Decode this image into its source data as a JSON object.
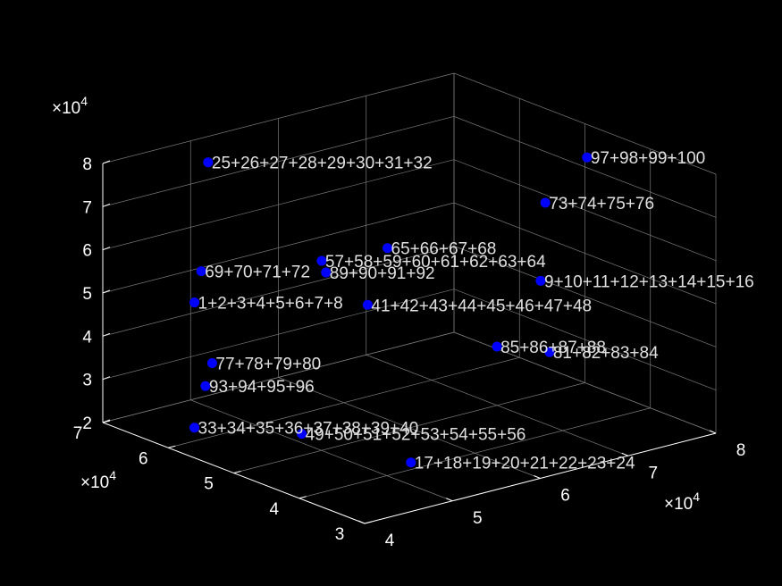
{
  "colors": {
    "background": "#000000",
    "axis_line": "#ffffff",
    "grid_line": "#7a7a7a",
    "tick_text": "#ffffff",
    "marker": "#0000ff",
    "point_label": "#e0e0e0"
  },
  "chart_data": {
    "type": "scatter",
    "dimension": "3d",
    "grid": true,
    "x_axis": {
      "ticks": [
        4,
        5,
        6,
        7,
        8
      ],
      "exponent_label": "×10",
      "exponent_power": "4",
      "lim": [
        40000,
        80000
      ]
    },
    "y_axis": {
      "ticks": [
        3,
        4,
        5,
        6,
        7
      ],
      "exponent_label": "×10",
      "exponent_power": "4",
      "lim": [
        30000,
        70000
      ]
    },
    "z_axis": {
      "ticks": [
        2,
        3,
        4,
        5,
        6,
        7,
        8
      ],
      "exponent_label": "×10",
      "exponent_power": "4",
      "lim": [
        20000,
        80000
      ]
    },
    "points": [
      {
        "label": "1+2+3+4+5+6+7+8",
        "x": 40000,
        "y": 56000,
        "z": 56000
      },
      {
        "label": "9+10+11+12+13+14+15+16",
        "x": 67500,
        "y": 40000,
        "z": 56000
      },
      {
        "label": "17+18+19+20+21+22+23+24",
        "x": 49000,
        "y": 35000,
        "z": 26500
      },
      {
        "label": "25+26+27+28+29+30+31+32",
        "x": 52000,
        "y": 70000,
        "z": 74000
      },
      {
        "label": "33+34+35+36+37+38+39+40",
        "x": 40000,
        "y": 56000,
        "z": 27000
      },
      {
        "label": "41+42+43+44+45+46+47+48",
        "x": 56000,
        "y": 51000,
        "z": 50000
      },
      {
        "label": "49+50+51+52+53+54+55+56",
        "x": 47000,
        "y": 49000,
        "z": 26000
      },
      {
        "label": "57+58+59+60+61+62+63+64",
        "x": 53000,
        "y": 54000,
        "z": 60000
      },
      {
        "label": "65+66+67+68",
        "x": 59000,
        "y": 52000,
        "z": 61000
      },
      {
        "label": "69+70+71+72",
        "x": 46000,
        "y": 63000,
        "z": 56000
      },
      {
        "label": "73+74+75+76",
        "x": 74000,
        "y": 48000,
        "z": 66000
      },
      {
        "label": "77+78+79+80",
        "x": 45000,
        "y": 60000,
        "z": 37000
      },
      {
        "label": "81+82+83+84",
        "x": 70000,
        "y": 42000,
        "z": 37000
      },
      {
        "label": "85+86+87+88",
        "x": 67000,
        "y": 46000,
        "z": 37500
      },
      {
        "label": "89+90+91+92",
        "x": 52000,
        "y": 52000,
        "z": 59000
      },
      {
        "label": "93+94+95+96",
        "x": 42000,
        "y": 57000,
        "z": 35000
      },
      {
        "label": "97+98+99+100",
        "x": 78000,
        "y": 47000,
        "z": 75000
      }
    ]
  }
}
